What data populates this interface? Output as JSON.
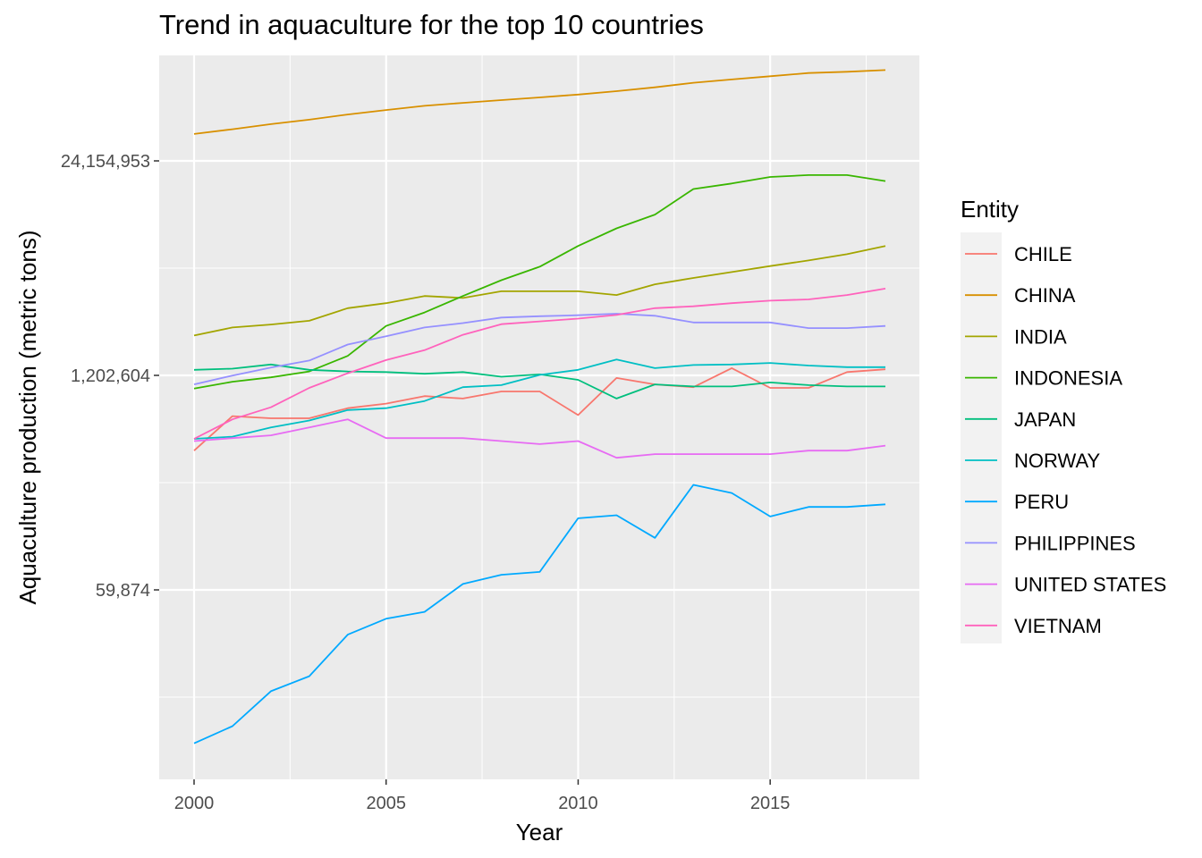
{
  "chart_data": {
    "type": "line",
    "title": "Trend in aquaculture for the top 10 countries",
    "xlabel": "Year",
    "ylabel": "Aquaculture production (metric tons)",
    "y_scale": "log",
    "xlim": [
      2000,
      2018
    ],
    "x_ticks": [
      2000,
      2005,
      2010,
      2015
    ],
    "y_ticks": [
      {
        "value": 59874,
        "label": "59,874"
      },
      {
        "value": 1202604,
        "label": "1,202,604"
      },
      {
        "value": 24154953,
        "label": "24,154,953"
      }
    ],
    "grid": true,
    "panel_background": "#EBEBEB",
    "legend": {
      "title": "Entity",
      "position": "right"
    },
    "x": [
      2000,
      2001,
      2002,
      2003,
      2004,
      2005,
      2006,
      2007,
      2008,
      2009,
      2010,
      2011,
      2012,
      2013,
      2014,
      2015,
      2016,
      2017,
      2018
    ],
    "series": [
      {
        "name": "CHILE",
        "color": "#F8766D",
        "values": [
          420000,
          680000,
          660000,
          660000,
          760000,
          810000,
          900000,
          870000,
          960000,
          960000,
          690000,
          1160000,
          1060000,
          1020000,
          1330000,
          1010000,
          1010000,
          1260000,
          1310000
        ]
      },
      {
        "name": "CHINA",
        "color": "#D89000",
        "values": [
          35200000,
          37600000,
          40400000,
          43000000,
          46200000,
          49200000,
          52200000,
          54400000,
          56500000,
          58700000,
          61100000,
          64000000,
          67600000,
          72000000,
          75400000,
          78900000,
          82500000,
          84000000,
          86000000
        ]
      },
      {
        "name": "INDIA",
        "color": "#A3A500",
        "values": [
          2100000,
          2350000,
          2450000,
          2580000,
          3080000,
          3300000,
          3650000,
          3550000,
          3900000,
          3900000,
          3900000,
          3700000,
          4300000,
          4700000,
          5100000,
          5550000,
          6000000,
          6550000,
          7350000
        ]
      },
      {
        "name": "INDONESIA",
        "color": "#39B600",
        "values": [
          1000000,
          1100000,
          1170000,
          1270000,
          1580000,
          2400000,
          2900000,
          3650000,
          4550000,
          5500000,
          7350000,
          9400000,
          11400000,
          16300000,
          17600000,
          19300000,
          19800000,
          19800000,
          18200000
        ]
      },
      {
        "name": "JAPAN",
        "color": "#00BF7D",
        "values": [
          1300000,
          1320000,
          1400000,
          1300000,
          1270000,
          1260000,
          1230000,
          1260000,
          1180000,
          1220000,
          1130000,
          870000,
          1060000,
          1030000,
          1030000,
          1090000,
          1050000,
          1030000,
          1030000
        ]
      },
      {
        "name": "NORWAY",
        "color": "#00BFC4",
        "values": [
          495000,
          510000,
          580000,
          640000,
          740000,
          760000,
          840000,
          1020000,
          1050000,
          1210000,
          1300000,
          1500000,
          1330000,
          1390000,
          1400000,
          1430000,
          1380000,
          1350000,
          1350000
        ]
      },
      {
        "name": "PERU",
        "color": "#00A9FF",
        "values": [
          7000,
          8900,
          14500,
          17900,
          32000,
          40000,
          44000,
          65000,
          74000,
          77000,
          163000,
          170000,
          124000,
          260000,
          232000,
          167000,
          191000,
          191000,
          198000
        ]
      },
      {
        "name": "PHILIPPINES",
        "color": "#9590FF",
        "values": [
          1060000,
          1200000,
          1340000,
          1480000,
          1850000,
          2080000,
          2350000,
          2500000,
          2700000,
          2750000,
          2790000,
          2850000,
          2770000,
          2520000,
          2520000,
          2520000,
          2330000,
          2330000,
          2400000
        ]
      },
      {
        "name": "UNITED STATES",
        "color": "#E76BF3",
        "values": [
          480000,
          500000,
          520000,
          580000,
          650000,
          500000,
          500000,
          500000,
          480000,
          460000,
          480000,
          380000,
          400000,
          400000,
          400000,
          400000,
          420000,
          420000,
          450000
        ]
      },
      {
        "name": "VIETNAM",
        "color": "#FF62BC",
        "values": [
          495000,
          650000,
          770000,
          1010000,
          1240000,
          1490000,
          1710000,
          2120000,
          2460000,
          2560000,
          2660000,
          2800000,
          3080000,
          3160000,
          3300000,
          3420000,
          3480000,
          3700000,
          4050000
        ]
      }
    ]
  }
}
